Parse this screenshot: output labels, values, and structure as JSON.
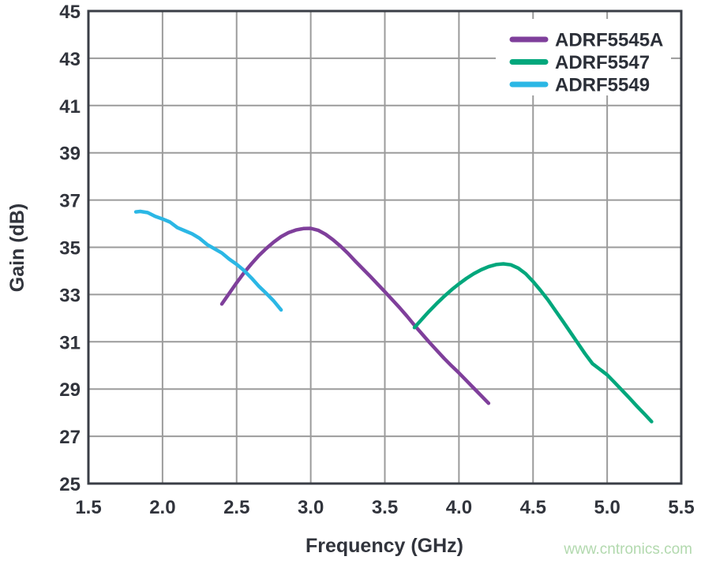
{
  "watermark": {
    "text": "www.cntronics.com"
  },
  "chart_data": {
    "type": "line",
    "title": "",
    "xlabel": "Frequency (GHz)",
    "ylabel": "Gain (dB)",
    "xlim": [
      1.5,
      5.5
    ],
    "ylim": [
      25,
      45
    ],
    "grid": true,
    "legend_position": "top-right",
    "xticks": [
      1.5,
      2.0,
      2.5,
      3.0,
      3.5,
      4.0,
      4.5,
      5.0,
      5.5
    ],
    "xtick_labels": [
      "1.5",
      "2.0",
      "2.5",
      "3.0",
      "3.5",
      "4.0",
      "4.5",
      "5.0",
      "5.5"
    ],
    "yticks": [
      25,
      27,
      29,
      31,
      33,
      35,
      37,
      39,
      41,
      43,
      45
    ],
    "ytick_labels": [
      "25",
      "27",
      "29",
      "31",
      "33",
      "35",
      "37",
      "39",
      "41",
      "43",
      "45"
    ],
    "colors": {
      "text": "#31343c",
      "grid": "#9b9b9b",
      "frame": "#3a3e46",
      "watermark": "#b2d9ae"
    },
    "series": [
      {
        "name": "ADRF5545A",
        "color": "#7f3f9b",
        "x": [
          2.4,
          2.45,
          2.5,
          2.55,
          2.6,
          2.65,
          2.7,
          2.75,
          2.8,
          2.85,
          2.9,
          2.95,
          3.0,
          3.05,
          3.1,
          3.15,
          3.2,
          3.25,
          3.3,
          3.35,
          3.4,
          3.45,
          3.5,
          3.55,
          3.6,
          3.65,
          3.7,
          3.75,
          3.8,
          3.85,
          3.9,
          3.95,
          4.0,
          4.05,
          4.1,
          4.15,
          4.2
        ],
        "y": [
          32.6,
          33.05,
          33.5,
          33.92,
          34.3,
          34.65,
          34.95,
          35.22,
          35.45,
          35.62,
          35.73,
          35.79,
          35.8,
          35.72,
          35.55,
          35.32,
          35.05,
          34.75,
          34.42,
          34.1,
          33.78,
          33.45,
          33.12,
          32.78,
          32.44,
          32.08,
          31.7,
          31.34,
          30.98,
          30.64,
          30.3,
          29.98,
          29.68,
          29.36,
          29.04,
          28.72,
          28.4
        ]
      },
      {
        "name": "ADRF5547",
        "color": "#00a77c",
        "x": [
          3.7,
          3.75,
          3.8,
          3.85,
          3.9,
          3.95,
          4.0,
          4.05,
          4.1,
          4.15,
          4.2,
          4.25,
          4.3,
          4.35,
          4.4,
          4.45,
          4.5,
          4.55,
          4.6,
          4.65,
          4.7,
          4.75,
          4.8,
          4.85,
          4.9,
          4.95,
          5.0,
          5.05,
          5.1,
          5.15,
          5.2,
          5.25,
          5.3
        ],
        "y": [
          31.6,
          31.95,
          32.3,
          32.62,
          32.92,
          33.2,
          33.45,
          33.68,
          33.88,
          34.05,
          34.18,
          34.27,
          34.3,
          34.26,
          34.12,
          33.88,
          33.55,
          33.18,
          32.78,
          32.33,
          31.88,
          31.42,
          30.96,
          30.5,
          30.08,
          29.84,
          29.6,
          29.28,
          28.95,
          28.62,
          28.28,
          27.95,
          27.62
        ]
      },
      {
        "name": "ADRF5549",
        "color": "#2bb7e5",
        "x": [
          1.82,
          1.85,
          1.9,
          1.95,
          2.0,
          2.05,
          2.1,
          2.15,
          2.2,
          2.25,
          2.3,
          2.35,
          2.4,
          2.45,
          2.5,
          2.55,
          2.6,
          2.65,
          2.7,
          2.75,
          2.8
        ],
        "y": [
          36.5,
          36.52,
          36.47,
          36.31,
          36.2,
          36.07,
          35.83,
          35.7,
          35.57,
          35.38,
          35.12,
          34.94,
          34.76,
          34.5,
          34.28,
          34.02,
          33.7,
          33.35,
          33.05,
          32.73,
          32.35
        ]
      }
    ]
  }
}
